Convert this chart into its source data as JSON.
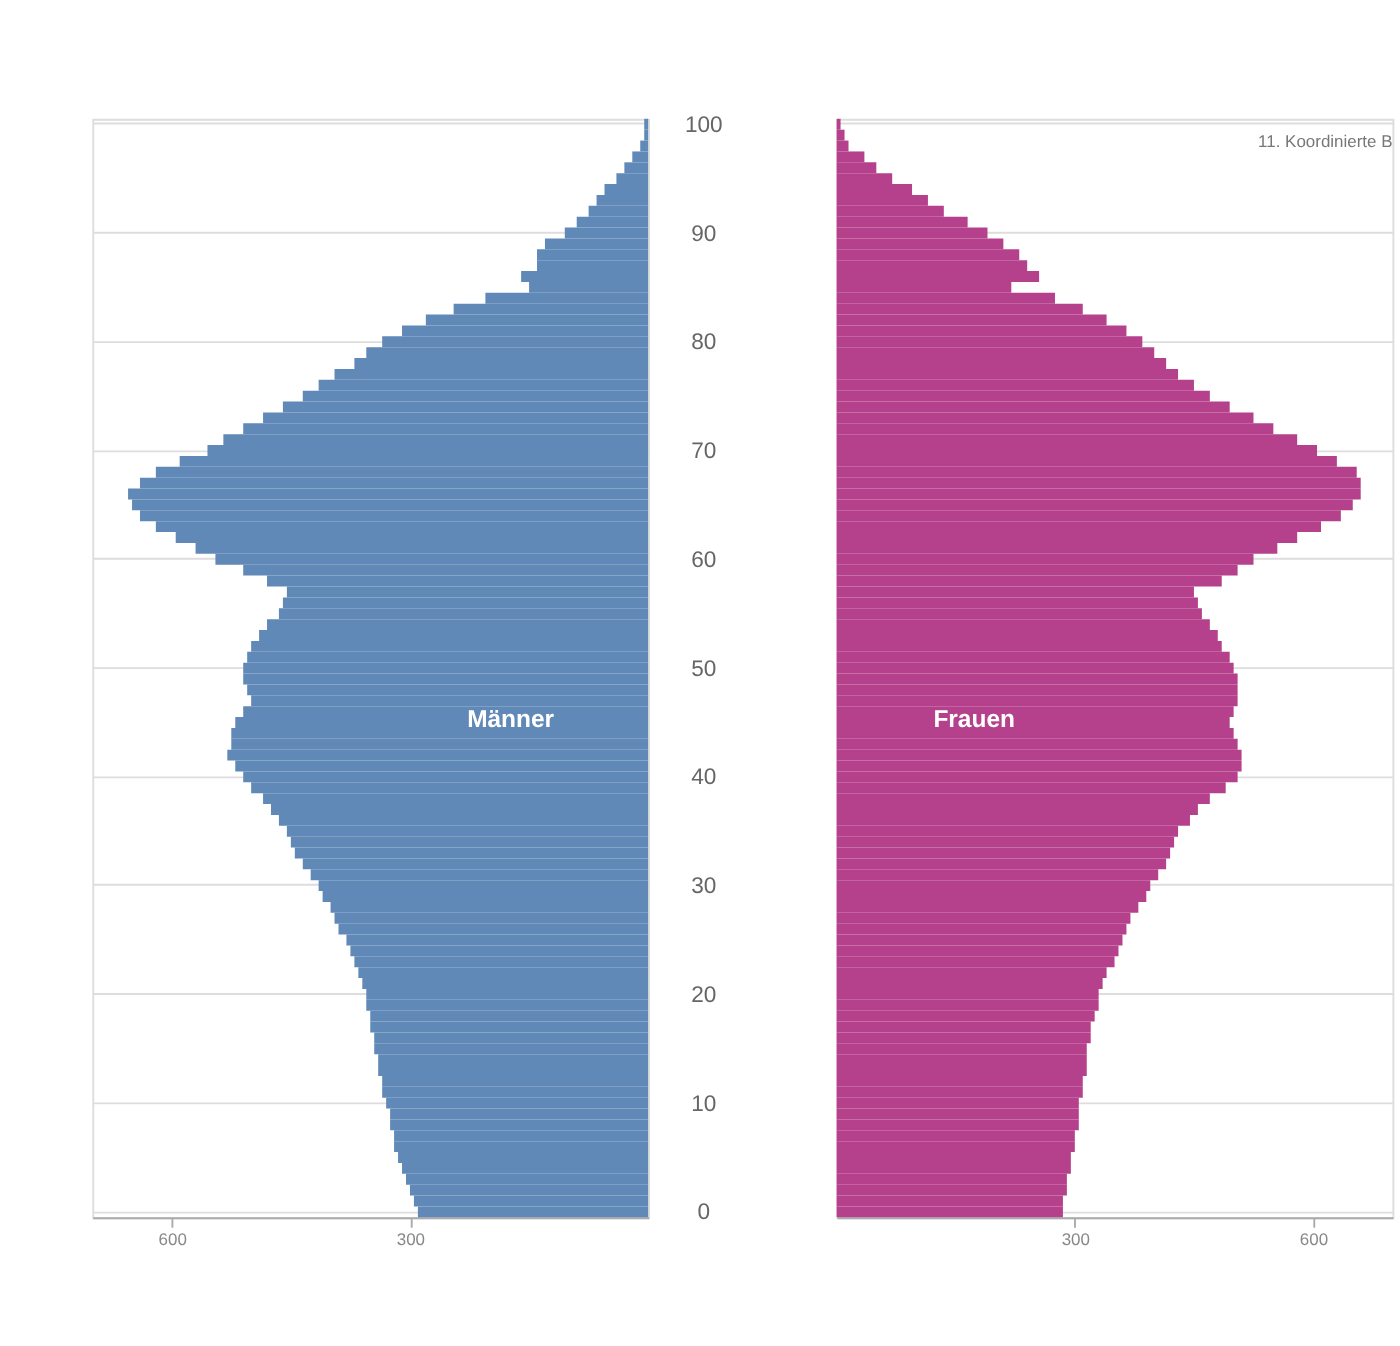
{
  "chart_data": [
    {
      "type": "bar",
      "orientation": "horizontal",
      "grid": "y",
      "legend": false,
      "categories": [
        "100",
        null,
        null,
        null,
        null,
        null,
        null,
        null,
        null,
        null,
        "90",
        null,
        null,
        null,
        null,
        null,
        null,
        null,
        null,
        null,
        "80",
        null,
        null,
        null,
        null,
        null,
        null,
        null,
        null,
        null,
        "70",
        null,
        null,
        null,
        null,
        null,
        null,
        null,
        null,
        null,
        "60",
        null,
        null,
        null,
        null,
        null,
        null,
        null,
        null,
        null,
        "50",
        null,
        null,
        null,
        null,
        null,
        null,
        null,
        null,
        null,
        "40",
        null,
        null,
        null,
        null,
        null,
        null,
        null,
        null,
        null,
        "30",
        null,
        null,
        null,
        null,
        null,
        null,
        null,
        null,
        null,
        "20",
        null,
        null,
        null,
        null,
        null,
        null,
        null,
        null,
        null,
        "10",
        null,
        null,
        null,
        null,
        null,
        null,
        null,
        null,
        null,
        "0"
      ],
      "xlim": [
        700,
        0
      ],
      "xticks": [
        600,
        300
      ],
      "series": [
        {
          "name": "Männer",
          "color": "#6189b8",
          "values": [
            5,
            5,
            10,
            20,
            30,
            40,
            55,
            65,
            75,
            90,
            105,
            130,
            140,
            140,
            160,
            150,
            205,
            245,
            280,
            310,
            335,
            355,
            370,
            395,
            415,
            435,
            460,
            485,
            510,
            535,
            555,
            590,
            620,
            640,
            655,
            650,
            640,
            620,
            595,
            570,
            545,
            510,
            480,
            455,
            460,
            465,
            480,
            490,
            500,
            505,
            510,
            510,
            505,
            500,
            510,
            520,
            525,
            525,
            530,
            520,
            510,
            500,
            485,
            475,
            465,
            455,
            450,
            445,
            435,
            425,
            415,
            410,
            400,
            395,
            390,
            380,
            375,
            370,
            365,
            360,
            355,
            355,
            350,
            350,
            345,
            345,
            340,
            340,
            335,
            335,
            330,
            325,
            325,
            320,
            320,
            315,
            310,
            305,
            300,
            295,
            290
          ]
        }
      ]
    },
    {
      "type": "bar",
      "orientation": "horizontal",
      "grid": "y",
      "legend": false,
      "tick_labels": "x",
      "categories": [
        "100",
        null,
        null,
        null,
        null,
        null,
        null,
        null,
        null,
        null,
        "90",
        null,
        null,
        null,
        null,
        null,
        null,
        null,
        null,
        null,
        "80",
        null,
        null,
        null,
        null,
        null,
        null,
        null,
        null,
        null,
        "70",
        null,
        null,
        null,
        null,
        null,
        null,
        null,
        null,
        null,
        "60",
        null,
        null,
        null,
        null,
        null,
        null,
        null,
        null,
        null,
        "50",
        null,
        null,
        null,
        null,
        null,
        null,
        null,
        null,
        null,
        "40",
        null,
        null,
        null,
        null,
        null,
        null,
        null,
        null,
        null,
        "30",
        null,
        null,
        null,
        null,
        null,
        null,
        null,
        null,
        null,
        "20",
        null,
        null,
        null,
        null,
        null,
        null,
        null,
        null,
        null,
        "10",
        null,
        null,
        null,
        null,
        null,
        null,
        null,
        null,
        null,
        "0"
      ],
      "xlim": [
        0,
        700
      ],
      "xticks": [
        300,
        600
      ],
      "annotations": [
        "11. Koordinierte B"
      ],
      "series": [
        {
          "name": "Frauen",
          "color": "#b5408c",
          "values": [
            5,
            10,
            15,
            35,
            50,
            70,
            95,
            115,
            135,
            165,
            190,
            210,
            230,
            240,
            255,
            220,
            275,
            310,
            340,
            365,
            385,
            400,
            415,
            430,
            450,
            470,
            495,
            525,
            550,
            580,
            605,
            630,
            655,
            660,
            660,
            650,
            635,
            610,
            580,
            555,
            525,
            505,
            485,
            450,
            455,
            460,
            470,
            480,
            485,
            495,
            500,
            505,
            505,
            505,
            500,
            495,
            500,
            505,
            510,
            510,
            505,
            490,
            470,
            455,
            445,
            430,
            425,
            420,
            415,
            405,
            395,
            390,
            380,
            370,
            365,
            360,
            355,
            350,
            340,
            335,
            330,
            330,
            325,
            320,
            320,
            315,
            315,
            315,
            310,
            310,
            305,
            305,
            305,
            300,
            300,
            295,
            295,
            290,
            290,
            285,
            285
          ]
        }
      ]
    }
  ]
}
